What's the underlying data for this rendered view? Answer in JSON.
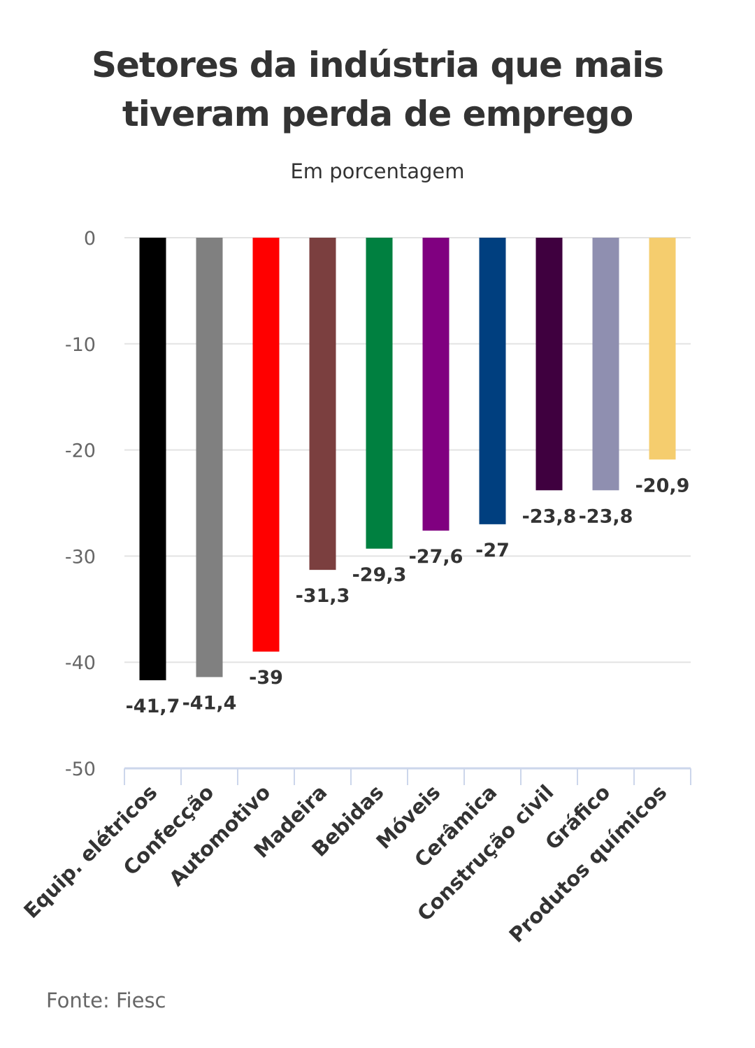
{
  "title_line1": "Setores da indústria que mais",
  "title_line2": "tiveram perda de emprego",
  "subtitle": "Em porcentagem",
  "source": "Fonte: Fiesc",
  "chart_data": {
    "type": "bar",
    "title": "Setores da indústria que mais tiveram perda de emprego",
    "subtitle": "Em porcentagem",
    "categories": [
      "Equip. elétricos",
      "Confecção",
      "Automotivo",
      "Madeira",
      "Bebidas",
      "Móveis",
      "Cerâmica",
      "Construção civil",
      "Gráfico",
      "Produtos químicos"
    ],
    "values": [
      -41.7,
      -41.4,
      -39,
      -31.3,
      -29.3,
      -27.6,
      -27,
      -23.8,
      -23.8,
      -20.9
    ],
    "value_labels": [
      "-41,7",
      "-41,4",
      "-39",
      "-31,3",
      "-29,3",
      "-27,6",
      "-27",
      "-23,8",
      "-23,8",
      "-20,9"
    ],
    "colors": [
      "#000000",
      "#808080",
      "#ff0000",
      "#7b3f3f",
      "#008040",
      "#800080",
      "#003f7f",
      "#3f003f",
      "#8f8fb0",
      "#f5cd6e"
    ],
    "yticks": [
      0,
      -10,
      -20,
      -30,
      -40,
      -50
    ],
    "ylim": [
      -50,
      0
    ],
    "xlabel": "",
    "ylabel": "",
    "grid": true,
    "legend": "none"
  }
}
